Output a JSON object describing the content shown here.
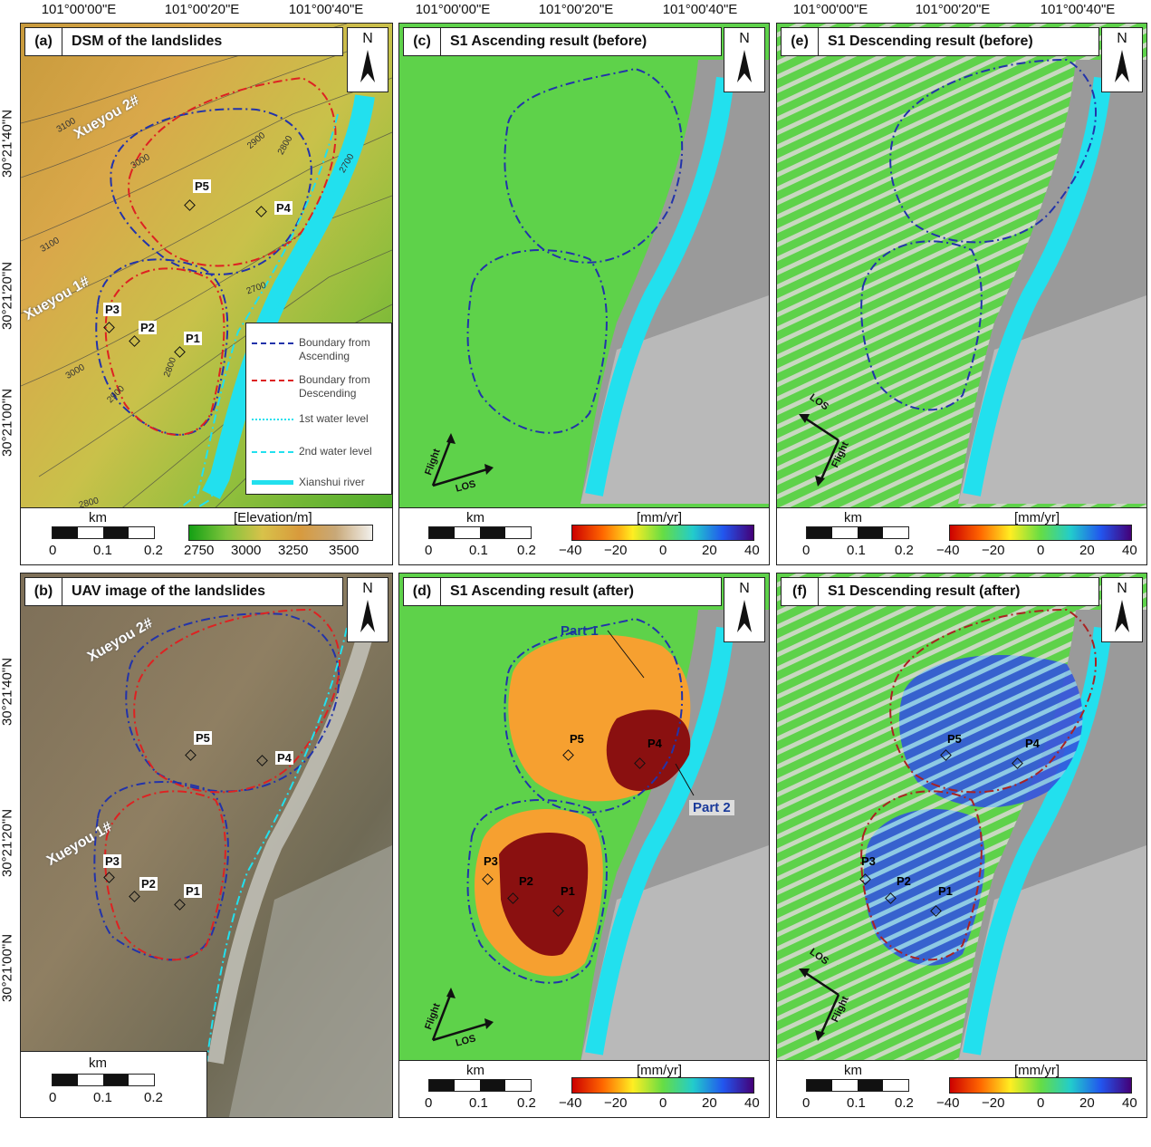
{
  "coords": {
    "lon": [
      "101°00'00\"E",
      "101°00'20\"E",
      "101°00'40\"E"
    ],
    "lat": [
      "30°21'40\"N",
      "30°21'20\"N",
      "30°21'00\"N"
    ]
  },
  "panels": {
    "a": {
      "letter": "(a)",
      "title": "DSM of the landslides"
    },
    "b": {
      "letter": "(b)",
      "title": "UAV image of the landslides"
    },
    "c": {
      "letter": "(c)",
      "title": "S1 Ascending result  (before)"
    },
    "d": {
      "letter": "(d)",
      "title": "S1 Ascending result  (after)"
    },
    "e": {
      "letter": "(e)",
      "title": "S1 Descending result  (before)"
    },
    "f": {
      "letter": "(f)",
      "title": "S1 Descending result  (after)"
    }
  },
  "north": "N",
  "scale": {
    "unit": "km",
    "ticks": [
      "0",
      "0.1",
      "0.2"
    ]
  },
  "colorbar_elev": {
    "title": "[Elevation/m]",
    "ticks": [
      "2750",
      "3000",
      "3250",
      "3500"
    ]
  },
  "colorbar_vel": {
    "title": "[mm/yr]",
    "ticks": [
      "−40",
      "−20",
      "0",
      "20",
      "40"
    ]
  },
  "points": [
    "P1",
    "P2",
    "P3",
    "P4",
    "P5"
  ],
  "slides": {
    "north": "Xueyou 2#",
    "south": "Xueyou 1#"
  },
  "legend": {
    "asc": "Boundary from Ascending",
    "desc": "Boundary from Descending",
    "w1": "1st water level",
    "w2": "2nd water level",
    "river": "Xianshui river"
  },
  "parts": {
    "p1": "Part 1",
    "p2": "Part 2"
  },
  "arrows": {
    "flight": "Flight",
    "los": "LOS"
  },
  "contours": [
    "3100",
    "3000",
    "2900",
    "2800",
    "2700",
    "3100",
    "3000",
    "2900",
    "2800",
    "2700",
    "2800"
  ],
  "colors": {
    "river": "#22e0ee",
    "asc_boundary": "#2233aa",
    "desc_boundary": "#dd2222"
  }
}
